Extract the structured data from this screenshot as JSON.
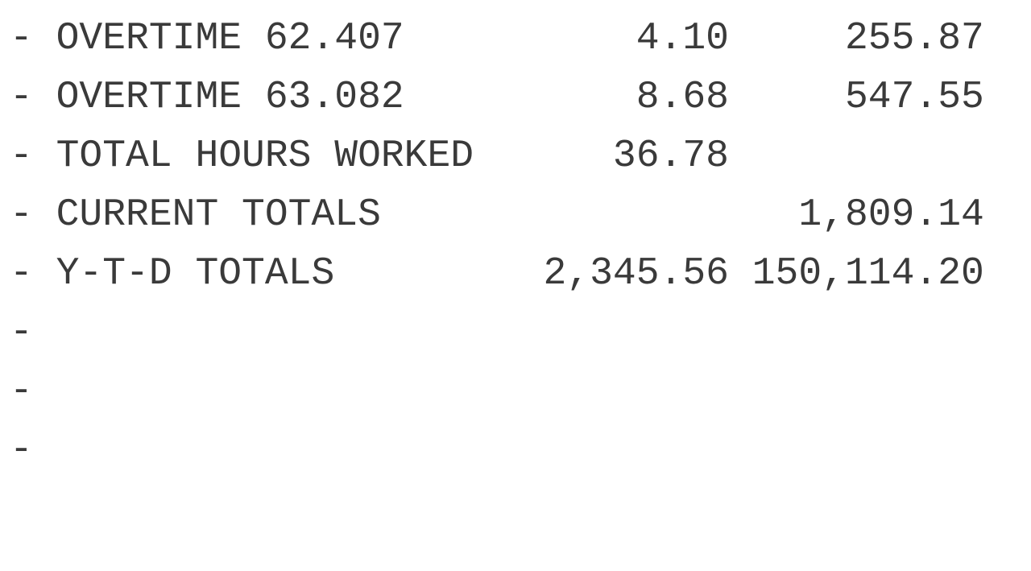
{
  "rows": [
    {
      "dash": "-",
      "label": "OVERTIME 62.407",
      "hours": "4.10",
      "amount": "255.87"
    },
    {
      "dash": "-",
      "label": "OVERTIME 63.082",
      "hours": "8.68",
      "amount": "547.55"
    },
    {
      "dash": "-",
      "label": "TOTAL HOURS WORKED",
      "hours": "36.78",
      "amount": ""
    },
    {
      "dash": "-",
      "label": "CURRENT TOTALS",
      "hours": "",
      "amount": "1,809.14"
    },
    {
      "dash": "-",
      "label": "Y-T-D TOTALS",
      "hours": "2,345.56",
      "amount": "150,114.20"
    },
    {
      "dash": "-",
      "label": "",
      "hours": "",
      "amount": ""
    },
    {
      "dash": "-",
      "label": "",
      "hours": "",
      "amount": ""
    },
    {
      "dash": "-",
      "label": "",
      "hours": "",
      "amount": ""
    }
  ]
}
